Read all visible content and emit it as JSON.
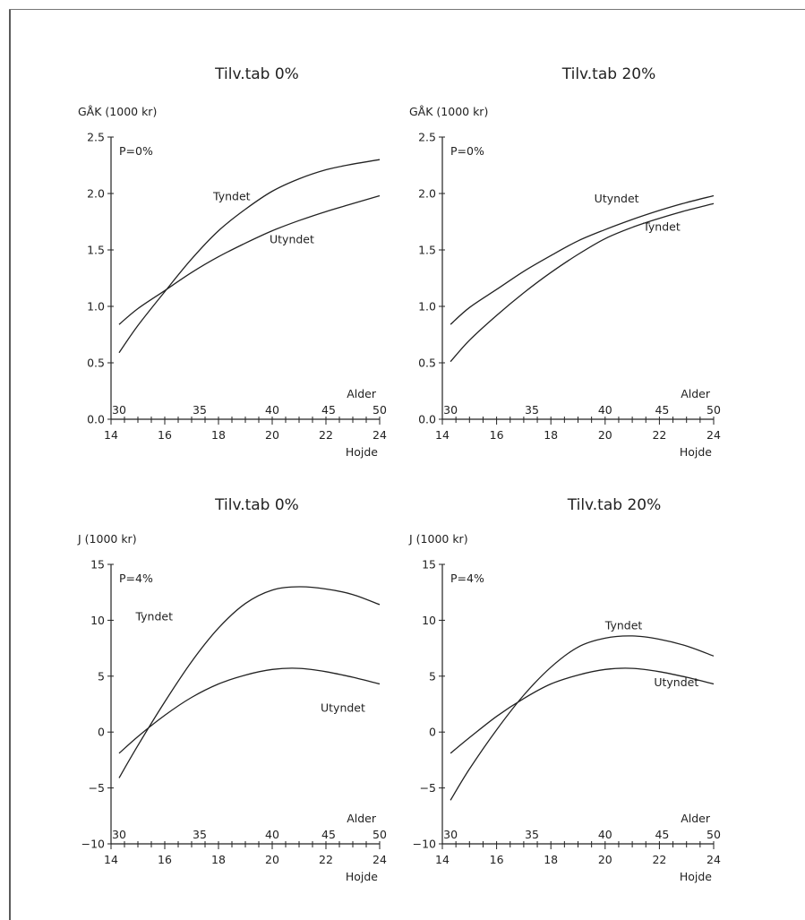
{
  "colors": {
    "line": "#222222",
    "background": "#ffffff",
    "border": "#5a5a5a"
  },
  "chart_data": [
    {
      "type": "line",
      "title": "Tilv.tab 0%",
      "ylabel": "GÅK (1000 kr)",
      "xlabel": "Hojde",
      "x2label": "Alder",
      "annotation": "P=0%",
      "xlim": [
        14,
        24
      ],
      "ylim": [
        0,
        2.5
      ],
      "xticks": [
        14,
        16,
        18,
        20,
        22,
        24
      ],
      "yticks": [
        0,
        0.5,
        1,
        1.5,
        2,
        2.5
      ],
      "ytick_labels": [
        "0.0",
        "0.5",
        "1.0",
        "1.5",
        "2.0",
        "2.5"
      ],
      "alder_ticks": [
        {
          "label": "30",
          "x": 14.3
        },
        {
          "label": "35",
          "x": 17.3
        },
        {
          "label": "40",
          "x": 20
        },
        {
          "label": "45",
          "x": 22.1
        },
        {
          "label": "50",
          "x": 24
        }
      ],
      "grid": false,
      "legend": "inline labels",
      "series": [
        {
          "name": "Tyndet",
          "x": [
            14.3,
            15,
            16,
            17,
            18,
            19,
            20,
            21,
            22,
            23,
            24
          ],
          "y": [
            0.59,
            0.83,
            1.13,
            1.42,
            1.67,
            1.86,
            2.02,
            2.13,
            2.21,
            2.26,
            2.3
          ]
        },
        {
          "name": "Utyndet",
          "x": [
            14.3,
            15,
            16,
            17,
            18,
            19,
            20,
            21,
            22,
            23,
            24
          ],
          "y": [
            0.84,
            0.98,
            1.14,
            1.3,
            1.44,
            1.56,
            1.67,
            1.76,
            1.84,
            1.91,
            1.98
          ]
        }
      ]
    },
    {
      "type": "line",
      "title": "Tilv.tab 20%",
      "ylabel": "GÅK (1000 kr)",
      "xlabel": "Hojde",
      "x2label": "Alder",
      "annotation": "P=0%",
      "xlim": [
        14,
        24
      ],
      "ylim": [
        0,
        2.5
      ],
      "xticks": [
        14,
        16,
        18,
        20,
        22,
        24
      ],
      "yticks": [
        0,
        0.5,
        1,
        1.5,
        2,
        2.5
      ],
      "ytick_labels": [
        "0.0",
        "0.5",
        "1.0",
        "1.5",
        "2.0",
        "2.5"
      ],
      "alder_ticks": [
        {
          "label": "30",
          "x": 14.3
        },
        {
          "label": "35",
          "x": 17.3
        },
        {
          "label": "40",
          "x": 20
        },
        {
          "label": "45",
          "x": 22.1
        },
        {
          "label": "50",
          "x": 24
        }
      ],
      "grid": false,
      "legend": "inline labels",
      "series": [
        {
          "name": "Tyndet",
          "x": [
            14.3,
            15,
            16,
            17,
            18,
            19,
            20,
            21,
            22,
            23,
            24
          ],
          "y": [
            0.51,
            0.7,
            0.92,
            1.12,
            1.3,
            1.46,
            1.6,
            1.7,
            1.78,
            1.85,
            1.91
          ]
        },
        {
          "name": "Utyndet",
          "x": [
            14.3,
            15,
            16,
            17,
            18,
            19,
            20,
            21,
            22,
            23,
            24
          ],
          "y": [
            0.84,
            0.99,
            1.15,
            1.31,
            1.45,
            1.58,
            1.68,
            1.77,
            1.85,
            1.92,
            1.98
          ]
        }
      ]
    },
    {
      "type": "line",
      "title": "Tilv.tab 0%",
      "ylabel": "J (1000 kr)",
      "xlabel": "Hojde",
      "x2label": "Alder",
      "annotation": "P=4%",
      "xlim": [
        14,
        24
      ],
      "ylim": [
        -10,
        15
      ],
      "xticks": [
        14,
        16,
        18,
        20,
        22,
        24
      ],
      "yticks": [
        -10,
        -5,
        0,
        5,
        10,
        15
      ],
      "ytick_labels": [
        "−10",
        "−5",
        "0",
        "5",
        "10",
        "15"
      ],
      "alder_ticks": [
        {
          "label": "30",
          "x": 14.3
        },
        {
          "label": "35",
          "x": 17.3
        },
        {
          "label": "40",
          "x": 20
        },
        {
          "label": "45",
          "x": 22.1
        },
        {
          "label": "50",
          "x": 24
        }
      ],
      "grid": false,
      "legend": "inline labels",
      "series": [
        {
          "name": "Tyndet",
          "x": [
            14.3,
            15,
            16,
            17,
            18,
            19,
            20,
            21,
            22,
            23,
            24
          ],
          "y": [
            -4.1,
            -1.2,
            2.7,
            6.3,
            9.3,
            11.5,
            12.7,
            13.0,
            12.8,
            12.3,
            11.4
          ]
        },
        {
          "name": "Utyndet",
          "x": [
            14.3,
            15,
            16,
            17,
            18,
            19,
            20,
            21,
            22,
            23,
            24
          ],
          "y": [
            -1.9,
            -0.4,
            1.5,
            3.1,
            4.3,
            5.1,
            5.6,
            5.7,
            5.4,
            4.9,
            4.3
          ]
        }
      ]
    },
    {
      "type": "line",
      "title": "Tilv.tab 20%",
      "ylabel": "J (1000 kr)",
      "xlabel": "Hojde",
      "x2label": "Alder",
      "annotation": "P=4%",
      "xlim": [
        14,
        24
      ],
      "ylim": [
        -10,
        15
      ],
      "xticks": [
        14,
        16,
        18,
        20,
        22,
        24
      ],
      "yticks": [
        -10,
        -5,
        0,
        5,
        10,
        15
      ],
      "ytick_labels": [
        "−10",
        "−5",
        "0",
        "5",
        "10",
        "15"
      ],
      "alder_ticks": [
        {
          "label": "30",
          "x": 14.3
        },
        {
          "label": "35",
          "x": 17.3
        },
        {
          "label": "40",
          "x": 20
        },
        {
          "label": "45",
          "x": 22.1
        },
        {
          "label": "50",
          "x": 24
        }
      ],
      "grid": false,
      "legend": "inline labels",
      "series": [
        {
          "name": "Tyndet",
          "x": [
            14.3,
            15,
            16,
            17,
            18,
            19,
            20,
            21,
            22,
            23,
            24
          ],
          "y": [
            -6.1,
            -3.3,
            0.2,
            3.3,
            5.8,
            7.6,
            8.4,
            8.6,
            8.3,
            7.7,
            6.8
          ]
        },
        {
          "name": "Utyndet",
          "x": [
            14.3,
            15,
            16,
            17,
            18,
            19,
            20,
            21,
            22,
            23,
            24
          ],
          "y": [
            -1.9,
            -0.5,
            1.4,
            3.0,
            4.3,
            5.1,
            5.6,
            5.7,
            5.4,
            4.9,
            4.3
          ]
        }
      ]
    }
  ]
}
